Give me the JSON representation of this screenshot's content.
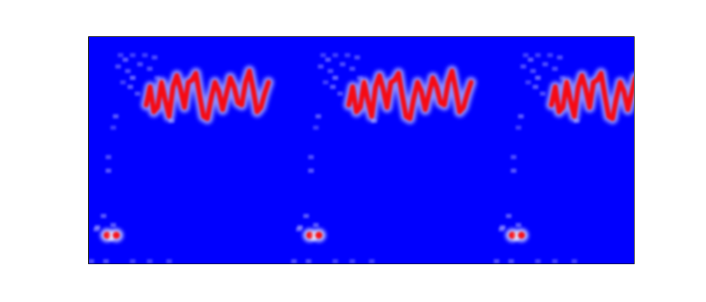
{
  "chart_data": {
    "type": "heatmap",
    "title": "",
    "xlabel": "",
    "ylabel": "",
    "colormap": {
      "background": "#0000ff",
      "low": "#ffffff",
      "high": "#ff0000"
    },
    "repeats": 3,
    "cells": [
      {
        "x": 0.12,
        "y": 0.13,
        "v": 0.3
      },
      {
        "x": 0.13,
        "y": 0.08,
        "v": 0.25
      },
      {
        "x": 0.15,
        "y": 0.1,
        "v": 0.35
      },
      {
        "x": 0.16,
        "y": 0.15,
        "v": 0.3
      },
      {
        "x": 0.18,
        "y": 0.08,
        "v": 0.25
      },
      {
        "x": 0.18,
        "y": 0.18,
        "v": 0.4
      },
      {
        "x": 0.21,
        "y": 0.12,
        "v": 0.3
      },
      {
        "x": 0.23,
        "y": 0.08,
        "v": 0.25
      },
      {
        "x": 0.25,
        "y": 0.14,
        "v": 0.3
      },
      {
        "x": 0.17,
        "y": 0.22,
        "v": 0.35
      },
      {
        "x": 0.27,
        "y": 0.09,
        "v": 0.3
      },
      {
        "x": 0.3,
        "y": 0.2,
        "v": 0.3
      },
      {
        "x": 0.2,
        "y": 0.25,
        "v": 0.3
      },
      {
        "x": 0.14,
        "y": 0.2,
        "v": 0.25
      },
      {
        "x": 0.11,
        "y": 0.35,
        "v": 0.35
      },
      {
        "x": 0.34,
        "y": 0.37,
        "v": 0.35
      },
      {
        "x": 0.08,
        "y": 0.53,
        "v": 0.3
      },
      {
        "x": 0.08,
        "y": 0.59,
        "v": 0.35
      },
      {
        "x": 0.03,
        "y": 0.85,
        "v": 0.3
      },
      {
        "x": 0.06,
        "y": 0.79,
        "v": 0.35
      },
      {
        "x": 0.1,
        "y": 0.83,
        "v": 0.35
      },
      {
        "x": 0.09,
        "y": 0.89,
        "v": 0.4
      },
      {
        "x": 0.035,
        "y": 0.84,
        "v": 0.4
      },
      {
        "x": 0.01,
        "y": 0.99,
        "v": 0.3
      },
      {
        "x": 0.07,
        "y": 0.99,
        "v": 0.3
      },
      {
        "x": 0.18,
        "y": 0.99,
        "v": 0.25
      },
      {
        "x": 0.25,
        "y": 0.99,
        "v": 0.25
      },
      {
        "x": 0.33,
        "y": 0.99,
        "v": 0.25
      },
      {
        "x": 0.28,
        "y": 0.18,
        "v": 0.25
      },
      {
        "x": 0.1,
        "y": 0.4,
        "v": 0.25
      }
    ],
    "trace_x": [
      0.0,
      0.01,
      0.02,
      0.03,
      0.04,
      0.05,
      0.06,
      0.07,
      0.08,
      0.09,
      0.1,
      0.11,
      0.12,
      0.13,
      0.14,
      0.15,
      0.16,
      0.17,
      0.18,
      0.19,
      0.2,
      0.21,
      0.22,
      0.23,
      0.24,
      0.25,
      0.26,
      0.27,
      0.28,
      0.29,
      0.3,
      0.31,
      0.32
    ],
    "trace_y": [
      0.3,
      0.22,
      0.33,
      0.31,
      0.2,
      0.28,
      0.35,
      0.22,
      0.17,
      0.23,
      0.31,
      0.2,
      0.19,
      0.16,
      0.26,
      0.35,
      0.36,
      0.27,
      0.2,
      0.24,
      0.32,
      0.25,
      0.18,
      0.22,
      0.29,
      0.3,
      0.2,
      0.15,
      0.23,
      0.33,
      0.31,
      0.25,
      0.2
    ],
    "blobs": [
      {
        "x": 0.09,
        "y": 0.875,
        "v": 0.9
      },
      {
        "x": 0.135,
        "y": 0.875,
        "v": 0.9
      }
    ]
  }
}
